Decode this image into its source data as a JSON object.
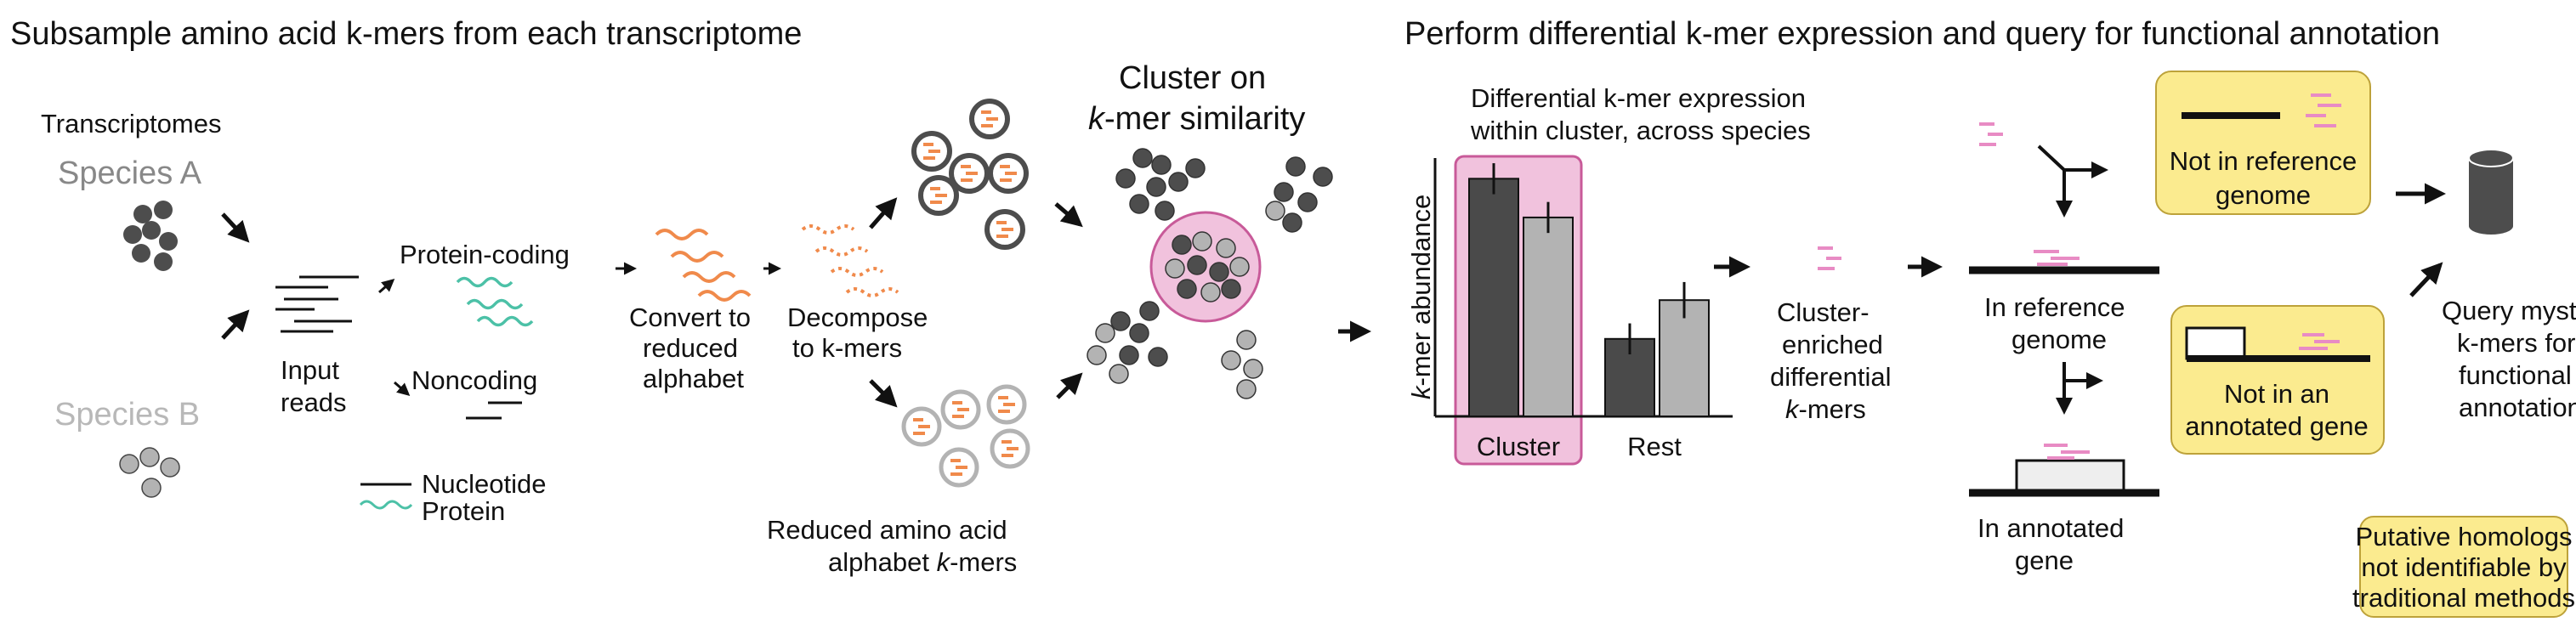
{
  "left_panel": {
    "title": "Subsample amino acid k-mers from each transcriptome",
    "transcriptomes_label": "Transcriptomes",
    "species_a": "Species A",
    "species_b": "Species B",
    "input_reads": [
      "Input",
      "reads"
    ],
    "protein_coding": "Protein-coding",
    "noncoding": "Noncoding",
    "legend_nucleotide": "Nucleotide",
    "legend_protein": "Protein",
    "convert_label": [
      "Convert to",
      "reduced",
      "alphabet"
    ],
    "decompose_label": [
      "Decompose",
      "to k-mers"
    ],
    "reduced_kmers_label": {
      "line1": "Reduced amino acid",
      "line2_prefix": "alphabet ",
      "line2_italic": "k",
      "line2_suffix": "-mers"
    },
    "cluster_title": {
      "line1": "Cluster on",
      "line2_italic": "k",
      "line2_suffix": "-mer similarity"
    }
  },
  "right_panel": {
    "title": "Perform differential k-mer expression and query for functional annotation",
    "diff_title": [
      "Differential k-mer expression",
      "within cluster, across species"
    ],
    "y_axis_label": {
      "italic": "k",
      "rest": "-mer abundance"
    },
    "enriched_label": {
      "line1": "Cluster-",
      "line2": "enriched",
      "line3": "differential",
      "line4_italic": "k",
      "line4_suffix": "-mers"
    },
    "not_in_reference": [
      "Not in reference",
      "genome"
    ],
    "in_reference": [
      "In reference",
      "genome"
    ],
    "not_in_annotated": [
      "Not in an",
      "annotated gene"
    ],
    "in_annotated": [
      "In annotated",
      "gene"
    ],
    "query_label": [
      "Query mystery",
      "k-mers  for",
      "functional",
      "annotation"
    ],
    "putative_label": [
      "Putative homologs",
      "not identifiable by",
      "traditional methods"
    ]
  },
  "chart_data": {
    "type": "bar",
    "categories": [
      "Cluster",
      "Rest"
    ],
    "series": [
      {
        "values": [
          0.92,
          0.3
        ]
      },
      {
        "values": [
          0.77,
          0.45
        ]
      }
    ],
    "error": [
      [
        0.06,
        0.06
      ],
      [
        0.06,
        0.07
      ]
    ],
    "ylabel": "k-mer abundance",
    "ylim": [
      0,
      1
    ],
    "colors": [
      "#4a4a4a",
      "#b3b3b3"
    ],
    "highlight_category": "Cluster",
    "highlight_color": "#f1c2dd"
  },
  "colors": {
    "dark_circle": "#4d4d4d",
    "light_circle": "#b3b3b3",
    "orange": "#f08a4b",
    "teal": "#4cc1a7",
    "pink": "#e88bc4",
    "pink_fill": "#f1c2dd",
    "yellow": "#fbeb8f",
    "yellow_border": "#bda23a"
  }
}
